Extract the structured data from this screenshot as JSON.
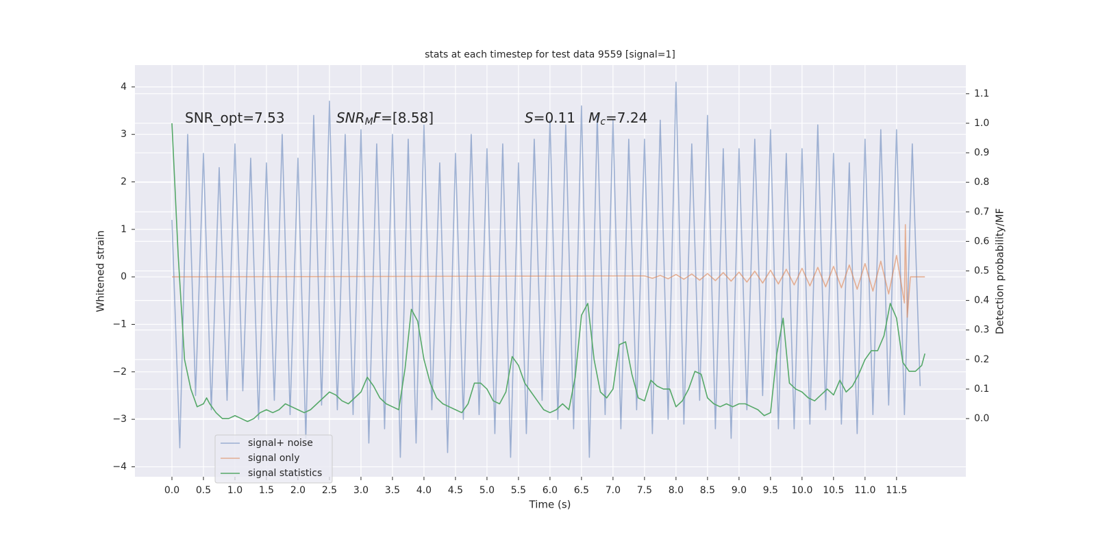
{
  "chart_data": {
    "type": "line",
    "title": "stats at each timestep for test data 9559 [signal=1]",
    "xlabel": "Time (s)",
    "ylabel": "Whitened strain",
    "y2label": "Detection probability/MF",
    "grid": true,
    "legend": "lower left",
    "xlim": [
      -0.587,
      12.6
    ],
    "ylim": [
      -4.21,
      4.46
    ],
    "y2lim": [
      -0.197,
      1.197
    ],
    "xticks": [
      {
        "value": 0,
        "label": "0.0"
      },
      0.5,
      {
        "value": 1,
        "label": "1.0"
      },
      1.5,
      {
        "value": 2,
        "label": "2.0"
      },
      2.5,
      {
        "value": 3,
        "label": "3.0"
      },
      3.5,
      {
        "value": 4,
        "label": "4.0"
      },
      4.5,
      {
        "value": 5,
        "label": "5.0"
      },
      5.5,
      {
        "value": 6,
        "label": "6.0"
      },
      6.5,
      {
        "value": 7,
        "label": "7.0"
      },
      7.5,
      {
        "value": 8,
        "label": "8.0"
      },
      8.5,
      {
        "value": 9,
        "label": "9.0"
      },
      9.5,
      {
        "value": 10,
        "label": "10.0"
      },
      10.5,
      {
        "value": 11,
        "label": "11.0"
      },
      11.5
    ],
    "yticks": [
      {
        "value": -4,
        "label": "−4"
      },
      {
        "value": -3,
        "label": "−3"
      },
      {
        "value": -2,
        "label": "−2"
      },
      {
        "value": -1,
        "label": "−1"
      },
      0,
      1,
      2,
      3,
      4
    ],
    "y2ticks": [
      {
        "value": 0,
        "label": "0.0"
      },
      0.1,
      0.2,
      0.3,
      0.4,
      0.5,
      0.6,
      0.7,
      0.8,
      0.9,
      {
        "value": 1,
        "label": "1.0"
      },
      1.1
    ],
    "annotations": [
      {
        "parts": [
          {
            "text": "SNR_opt=7.53"
          }
        ]
      },
      {
        "parts": [
          {
            "text": "SNR",
            "italic": true
          },
          {
            "text": "M",
            "italic": true,
            "sub": true
          },
          {
            "text": "F",
            "italic": true
          },
          {
            "text": "=[8.58]"
          }
        ]
      },
      {
        "parts": [
          {
            "text": "S",
            "italic": true
          },
          {
            "text": "=0.11   "
          },
          {
            "text": "M",
            "italic": true
          },
          {
            "text": "c",
            "italic": true,
            "sub": true
          },
          {
            "text": "=7.24"
          }
        ]
      }
    ],
    "series": [
      {
        "name": "signal+ noise",
        "color": "#4c72b0",
        "alpha": 0.5,
        "x": [
          0,
          0.125,
          0.25,
          0.375,
          0.5,
          0.625,
          0.75,
          0.875,
          1,
          1.125,
          1.25,
          1.375,
          1.5,
          1.625,
          1.75,
          1.875,
          2,
          2.125,
          2.25,
          2.375,
          2.5,
          2.625,
          2.75,
          2.875,
          3,
          3.125,
          3.25,
          3.375,
          3.5,
          3.625,
          3.75,
          3.875,
          4,
          4.125,
          4.25,
          4.375,
          4.5,
          4.625,
          4.75,
          4.875,
          5,
          5.125,
          5.25,
          5.375,
          5.5,
          5.625,
          5.75,
          5.875,
          6,
          6.125,
          6.25,
          6.375,
          6.5,
          6.625,
          6.75,
          6.875,
          7,
          7.125,
          7.25,
          7.375,
          7.5,
          7.625,
          7.75,
          7.875,
          8,
          8.125,
          8.25,
          8.375,
          8.5,
          8.625,
          8.75,
          8.875,
          9,
          9.125,
          9.25,
          9.375,
          9.5,
          9.625,
          9.75,
          9.875,
          10,
          10.125,
          10.25,
          10.375,
          10.5,
          10.625,
          10.75,
          10.875,
          11,
          11.125,
          11.25,
          11.375,
          11.5,
          11.625,
          11.75,
          11.875
        ],
        "values": [
          1.2,
          -3.6,
          3.0,
          -2.5,
          2.6,
          -2.8,
          2.3,
          -2.6,
          2.8,
          -2.4,
          2.5,
          -3.0,
          2.4,
          -2.6,
          3.0,
          -2.9,
          2.5,
          -3.4,
          3.4,
          -2.7,
          3.7,
          -2.8,
          3.0,
          -2.9,
          3.1,
          -3.5,
          2.8,
          -3.2,
          3.0,
          -3.8,
          2.9,
          -3.5,
          3.2,
          -2.8,
          2.4,
          -3.7,
          2.6,
          -3.0,
          3.0,
          -2.9,
          2.7,
          -3.3,
          2.8,
          -3.8,
          2.4,
          -3.3,
          2.9,
          -2.6,
          3.3,
          -3.0,
          3.2,
          -3.2,
          3.6,
          -3.8,
          3.4,
          -2.9,
          3.3,
          -3.2,
          2.9,
          -2.8,
          2.9,
          -3.3,
          3.3,
          -3.0,
          4.1,
          -3.1,
          2.8,
          -2.6,
          3.4,
          -3.2,
          2.7,
          -3.4,
          2.7,
          -2.8,
          2.9,
          -2.5,
          3.1,
          -3.2,
          2.6,
          -3.2,
          2.7,
          -3.1,
          3.2,
          -2.8,
          2.6,
          -3.1,
          2.4,
          -3.3,
          2.9,
          -2.9,
          3.1,
          -2.7,
          3.1,
          -2.9,
          2.8,
          -2.3
        ]
      },
      {
        "name": "signal only",
        "color": "#dd8452",
        "alpha": 0.6,
        "x": [
          0,
          7.5,
          7.625,
          7.75,
          7.875,
          8,
          8.125,
          8.25,
          8.375,
          8.5,
          8.625,
          8.75,
          8.875,
          9,
          9.125,
          9.25,
          9.375,
          9.5,
          9.625,
          9.75,
          9.875,
          10,
          10.125,
          10.25,
          10.375,
          10.5,
          10.625,
          10.75,
          10.875,
          11,
          11.125,
          11.25,
          11.375,
          11.5,
          11.625,
          11.64,
          11.67,
          11.72,
          11.95
        ],
        "values": [
          0,
          0.02,
          -0.03,
          0.03,
          -0.04,
          0.05,
          -0.05,
          0.06,
          -0.07,
          0.07,
          -0.08,
          0.09,
          -0.09,
          0.1,
          -0.11,
          0.12,
          -0.13,
          0.14,
          -0.15,
          0.16,
          -0.17,
          0.18,
          -0.19,
          0.2,
          -0.21,
          0.22,
          -0.23,
          0.25,
          -0.26,
          0.28,
          -0.3,
          0.33,
          -0.36,
          0.45,
          -0.55,
          1.1,
          -0.85,
          0,
          0
        ]
      },
      {
        "name": "signal statistics",
        "color": "#55a868",
        "alpha": 1,
        "axis": "y2",
        "x": [
          0,
          0.1,
          0.2,
          0.3,
          0.4,
          0.5,
          0.55,
          0.6,
          0.7,
          0.8,
          0.9,
          1,
          1.1,
          1.2,
          1.3,
          1.4,
          1.5,
          1.6,
          1.7,
          1.8,
          1.9,
          2,
          2.1,
          2.2,
          2.3,
          2.4,
          2.5,
          2.6,
          2.7,
          2.8,
          2.9,
          3,
          3.1,
          3.2,
          3.3,
          3.4,
          3.5,
          3.6,
          3.7,
          3.8,
          3.9,
          4,
          4.1,
          4.2,
          4.3,
          4.4,
          4.5,
          4.6,
          4.7,
          4.8,
          4.9,
          5,
          5.1,
          5.2,
          5.3,
          5.4,
          5.5,
          5.6,
          5.7,
          5.8,
          5.9,
          6,
          6.1,
          6.2,
          6.3,
          6.4,
          6.5,
          6.6,
          6.7,
          6.8,
          6.9,
          7,
          7.1,
          7.2,
          7.3,
          7.4,
          7.5,
          7.6,
          7.7,
          7.8,
          7.9,
          8,
          8.1,
          8.2,
          8.3,
          8.4,
          8.5,
          8.6,
          8.7,
          8.8,
          8.9,
          9,
          9.1,
          9.2,
          9.3,
          9.4,
          9.5,
          9.6,
          9.7,
          9.8,
          9.9,
          10,
          10.1,
          10.2,
          10.3,
          10.4,
          10.5,
          10.6,
          10.7,
          10.8,
          10.9,
          11,
          11.1,
          11.2,
          11.3,
          11.4,
          11.5,
          11.6,
          11.7,
          11.8,
          11.9,
          11.95
        ],
        "values": [
          1.0,
          0.55,
          0.2,
          0.1,
          0.04,
          0.05,
          0.07,
          0.05,
          0.02,
          0.0,
          0.0,
          0.01,
          0.0,
          -0.01,
          0.0,
          0.02,
          0.03,
          0.02,
          0.03,
          0.05,
          0.04,
          0.03,
          0.02,
          0.03,
          0.05,
          0.07,
          0.09,
          0.08,
          0.06,
          0.05,
          0.07,
          0.09,
          0.14,
          0.11,
          0.07,
          0.05,
          0.04,
          0.03,
          0.17,
          0.37,
          0.33,
          0.2,
          0.12,
          0.07,
          0.05,
          0.04,
          0.03,
          0.02,
          0.05,
          0.12,
          0.12,
          0.1,
          0.06,
          0.05,
          0.09,
          0.21,
          0.18,
          0.12,
          0.09,
          0.06,
          0.03,
          0.02,
          0.03,
          0.05,
          0.03,
          0.14,
          0.35,
          0.39,
          0.2,
          0.09,
          0.07,
          0.1,
          0.25,
          0.26,
          0.15,
          0.07,
          0.06,
          0.13,
          0.11,
          0.1,
          0.1,
          0.04,
          0.06,
          0.1,
          0.16,
          0.15,
          0.07,
          0.05,
          0.04,
          0.05,
          0.04,
          0.05,
          0.05,
          0.04,
          0.03,
          0.01,
          0.02,
          0.22,
          0.34,
          0.12,
          0.1,
          0.09,
          0.07,
          0.06,
          0.08,
          0.1,
          0.08,
          0.13,
          0.09,
          0.11,
          0.15,
          0.2,
          0.23,
          0.23,
          0.28,
          0.39,
          0.34,
          0.19,
          0.16,
          0.16,
          0.18,
          0.22
        ]
      }
    ]
  }
}
